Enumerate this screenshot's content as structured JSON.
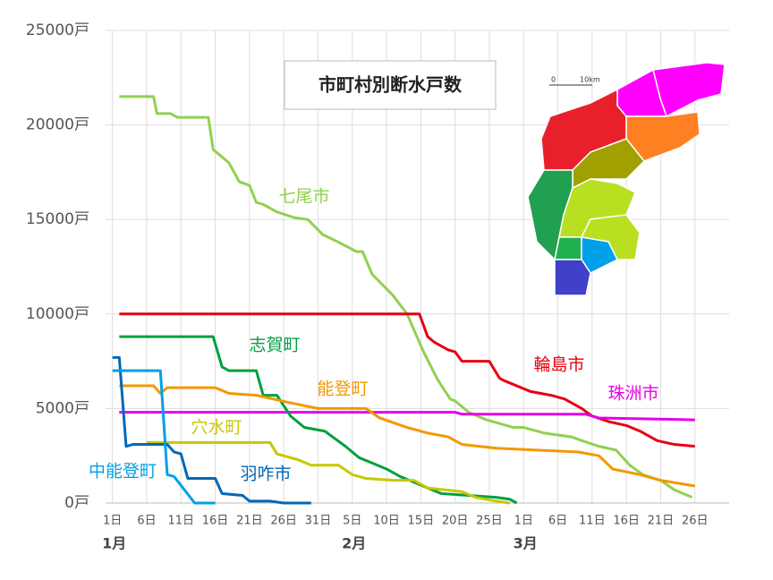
{
  "chart_data": {
    "type": "line",
    "title": "市町村別断水戸数",
    "xlim": [
      0,
      91
    ],
    "ylim": [
      0,
      25000
    ],
    "yticks": [
      {
        "value": 0,
        "label": "0戸"
      },
      {
        "value": 5000,
        "label": "5000戸"
      },
      {
        "value": 10000,
        "label": "10000戸"
      },
      {
        "value": 15000,
        "label": "15000戸"
      },
      {
        "value": 20000,
        "label": "20000戸"
      },
      {
        "value": 25000,
        "label": "25000戸"
      }
    ],
    "xticks": [
      {
        "value": 1,
        "label": "1日"
      },
      {
        "value": 6,
        "label": "6日"
      },
      {
        "value": 11,
        "label": "11日"
      },
      {
        "value": 16,
        "label": "16日"
      },
      {
        "value": 21,
        "label": "21日"
      },
      {
        "value": 26,
        "label": "26日"
      },
      {
        "value": 31,
        "label": "31日"
      },
      {
        "value": 36,
        "label": "5日"
      },
      {
        "value": 41,
        "label": "10日"
      },
      {
        "value": 46,
        "label": "15日"
      },
      {
        "value": 51,
        "label": "20日"
      },
      {
        "value": 56,
        "label": "25日"
      },
      {
        "value": 61,
        "label": "1日"
      },
      {
        "value": 66,
        "label": "6日"
      },
      {
        "value": 71,
        "label": "11日"
      },
      {
        "value": 76,
        "label": "16日"
      },
      {
        "value": 81,
        "label": "21日"
      },
      {
        "value": 86,
        "label": "26日"
      }
    ],
    "month_labels": [
      {
        "value": 1,
        "label": "1月"
      },
      {
        "value": 36,
        "label": "2月"
      },
      {
        "value": 61,
        "label": "3月"
      }
    ],
    "map_scale": [
      "0",
      "10km"
    ],
    "grid": true,
    "series": [
      {
        "name": "七尾市",
        "color": "#92d050",
        "x": [
          2,
          7,
          7.5,
          9.5,
          10.5,
          15,
          15.7,
          18,
          19.5,
          21,
          22,
          23,
          25,
          27.5,
          29.5,
          31.7,
          34,
          36.6,
          37.5,
          38.9,
          41.9,
          44,
          46.4,
          48.5,
          50.3,
          51,
          53,
          55.6,
          59.5,
          61,
          64,
          68,
          69.5,
          72,
          74.5,
          76.5,
          78.4,
          81,
          83,
          85.6
        ],
        "values": [
          21500,
          21500,
          20600,
          20600,
          20400,
          20400,
          18700,
          18000,
          17000,
          16800,
          15900,
          15800,
          15400,
          15100,
          15000,
          14200,
          13800,
          13300,
          13300,
          12100,
          11000,
          10000,
          8000,
          6500,
          5500,
          5400,
          4800,
          4400,
          4000,
          4000,
          3700,
          3500,
          3300,
          3000,
          2800,
          2000,
          1500,
          1200,
          700,
          300
        ]
      },
      {
        "name": "輪島市",
        "color": "#e60012",
        "x": [
          2,
          45.8,
          47,
          48,
          50,
          51,
          52,
          56,
          57.5,
          58,
          60,
          62,
          65,
          67,
          69.5,
          71,
          73.5,
          76,
          78,
          80.5,
          83,
          86
        ],
        "values": [
          10000,
          10000,
          8800,
          8500,
          8100,
          8000,
          7500,
          7500,
          6600,
          6500,
          6200,
          5900,
          5700,
          5500,
          5000,
          4600,
          4300,
          4100,
          3800,
          3300,
          3100,
          3000
        ]
      },
      {
        "name": "珠洲市",
        "color": "#e600e6",
        "x": [
          2,
          51,
          52,
          70,
          72,
          86
        ],
        "values": [
          4800,
          4800,
          4700,
          4700,
          4500,
          4400
        ]
      },
      {
        "name": "志賀町",
        "color": "#00a040",
        "x": [
          2,
          15.7,
          17,
          18,
          22,
          23,
          25,
          27,
          29,
          32,
          35,
          37,
          39,
          41,
          43,
          45,
          47,
          49,
          53,
          57,
          59,
          60
        ],
        "values": [
          8800,
          8800,
          7200,
          7000,
          7000,
          5700,
          5700,
          4600,
          4000,
          3800,
          3000,
          2400,
          2100,
          1800,
          1400,
          1100,
          800,
          500,
          400,
          300,
          200,
          0
        ]
      },
      {
        "name": "能登町",
        "color": "#f39800",
        "x": [
          2,
          7,
          8,
          9,
          16,
          18,
          22,
          27,
          31,
          38,
          40,
          44,
          47,
          50,
          52,
          57,
          63,
          69,
          72,
          74,
          78,
          81,
          86
        ],
        "values": [
          6200,
          6200,
          5800,
          6100,
          6100,
          5800,
          5700,
          5300,
          5000,
          5000,
          4500,
          4000,
          3700,
          3500,
          3100,
          2900,
          2800,
          2700,
          2500,
          1800,
          1500,
          1200,
          900
        ]
      },
      {
        "name": "穴水町",
        "color": "#c8c800",
        "x": [
          6,
          24,
          25,
          28,
          30,
          34,
          36,
          38,
          42,
          45,
          47,
          52,
          54,
          57,
          59
        ],
        "values": [
          3200,
          3200,
          2600,
          2300,
          2000,
          2000,
          1500,
          1300,
          1200,
          1200,
          800,
          600,
          300,
          100,
          0
        ]
      },
      {
        "name": "羽咋市",
        "color": "#0068b7",
        "x": [
          1,
          2,
          3,
          4,
          9,
          10,
          11,
          12,
          16,
          17,
          20,
          21,
          24,
          26,
          30
        ],
        "values": [
          7700,
          7700,
          3000,
          3100,
          3100,
          2700,
          2600,
          1300,
          1300,
          500,
          400,
          100,
          100,
          0,
          0
        ]
      },
      {
        "name": "中能登町",
        "color": "#00a0e9",
        "x": [
          1,
          8,
          9,
          10,
          13,
          16
        ],
        "values": [
          7000,
          7000,
          1500,
          1400,
          0,
          0
        ]
      }
    ]
  }
}
